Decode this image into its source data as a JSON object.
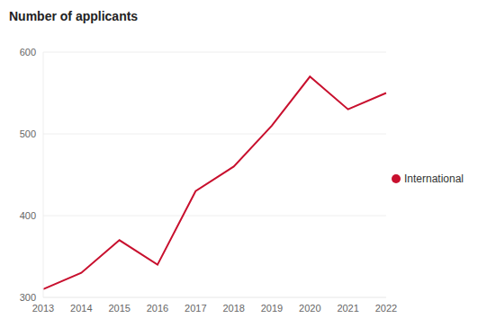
{
  "chart_data": {
    "type": "line",
    "title": "Number of applicants",
    "categories": [
      "2013",
      "2014",
      "2015",
      "2016",
      "2017",
      "2018",
      "2019",
      "2020",
      "2021",
      "2022"
    ],
    "series": [
      {
        "name": "International",
        "color": "#c8102e",
        "values": [
          310,
          330,
          370,
          340,
          430,
          460,
          510,
          570,
          530,
          550
        ]
      }
    ],
    "ylim": [
      300,
      600
    ],
    "yticks": [
      300,
      400,
      500,
      600
    ],
    "grid": true,
    "legend": "right"
  }
}
